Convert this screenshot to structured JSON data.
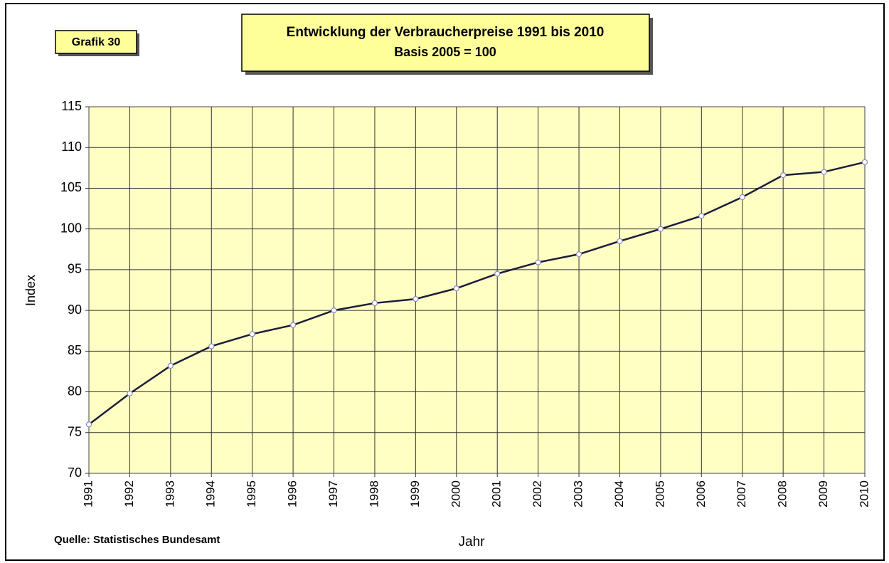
{
  "chart_data": {
    "type": "line",
    "badge": "Grafik 30",
    "title": "Entwicklung der Verbraucherpreise 1991 bis 2010",
    "subtitle": "Basis 2005 = 100",
    "xlabel": "Jahr",
    "ylabel": "Index",
    "source": "Quelle: Statistisches Bundesamt",
    "categories": [
      "1991",
      "1992",
      "1993",
      "1994",
      "1995",
      "1996",
      "1997",
      "1998",
      "1999",
      "2000",
      "2001",
      "2002",
      "2003",
      "2004",
      "2005",
      "2006",
      "2007",
      "2008",
      "2009",
      "2010"
    ],
    "values": [
      76.0,
      79.8,
      83.2,
      85.6,
      87.1,
      88.2,
      90.0,
      90.9,
      91.4,
      92.7,
      94.5,
      95.9,
      96.9,
      98.5,
      100,
      101.6,
      103.9,
      106.6,
      107.0,
      108.2
    ],
    "color": "#1c1c3c",
    "ylim": [
      70,
      115
    ],
    "yticks": [
      70,
      75,
      80,
      85,
      90,
      95,
      100,
      105,
      110,
      115
    ],
    "grid": true
  }
}
